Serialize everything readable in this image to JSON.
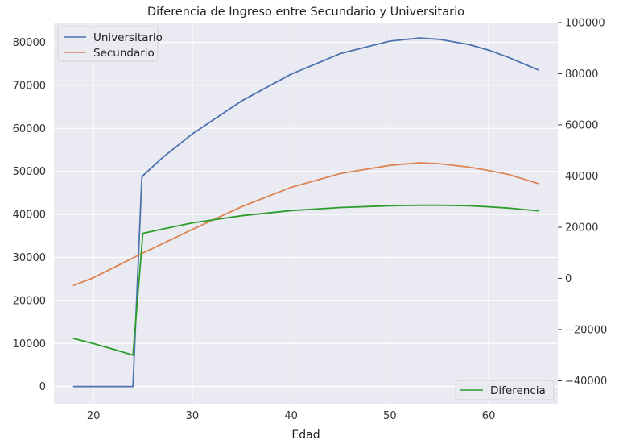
{
  "chart_data": {
    "type": "line",
    "title": "Diferencia de Ingreso entre Secundario y Universitario",
    "xlabel": "Edad",
    "ylabel": "",
    "ylabel_right": "",
    "xlim": [
      16,
      67
    ],
    "ylim": [
      -4000,
      84600
    ],
    "ylim_right": [
      -49000,
      100000
    ],
    "x_ticks": [
      20,
      30,
      40,
      50,
      60
    ],
    "y_ticks": [
      0,
      10000,
      20000,
      30000,
      40000,
      50000,
      60000,
      70000,
      80000
    ],
    "y_ticks_right": [
      -40000,
      -20000,
      0,
      20000,
      40000,
      60000,
      80000,
      100000
    ],
    "grid": true,
    "legend_left": {
      "position": "upper-left",
      "entries": [
        "Universitario",
        "Secundario"
      ]
    },
    "legend_right": {
      "position": "lower-right",
      "entries": [
        "Diferencia"
      ]
    },
    "series": [
      {
        "name": "Universitario",
        "axis": "left",
        "color": "#4c72b0",
        "x": [
          18,
          19,
          20,
          21,
          22,
          23,
          24,
          24.9,
          25,
          27,
          30,
          35,
          40,
          45,
          50,
          53,
          55,
          58,
          60,
          62,
          65
        ],
        "y": [
          0,
          0,
          0,
          0,
          0,
          0,
          0,
          48500,
          49000,
          53200,
          58700,
          66400,
          72600,
          77400,
          80300,
          81000,
          80700,
          79500,
          78200,
          76500,
          73600
        ]
      },
      {
        "name": "Secundario",
        "axis": "left",
        "color": "#dd8452",
        "x": [
          18,
          20,
          25,
          30,
          35,
          40,
          45,
          50,
          53,
          55,
          58,
          60,
          62,
          65
        ],
        "y": [
          23500,
          25300,
          31000,
          36500,
          41800,
          46300,
          49500,
          51400,
          52000,
          51800,
          51000,
          50200,
          49300,
          47200
        ]
      },
      {
        "name": "Diferencia",
        "axis": "right",
        "color": "#2a9d2a",
        "x": [
          18,
          20,
          22,
          24,
          25,
          27,
          30,
          35,
          40,
          45,
          50,
          53,
          55,
          58,
          60,
          62,
          65
        ],
        "y": [
          -23500,
          -25500,
          -27700,
          -30000,
          17600,
          19300,
          21700,
          24500,
          26500,
          27700,
          28400,
          28600,
          28600,
          28400,
          28000,
          27500,
          26400
        ]
      }
    ]
  }
}
